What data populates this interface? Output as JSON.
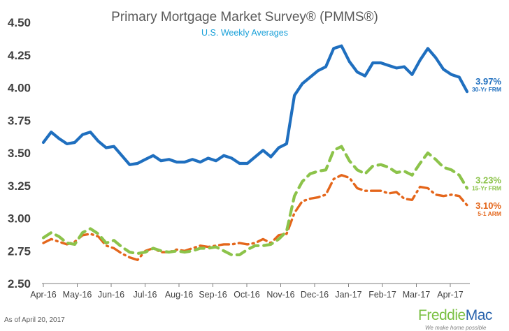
{
  "header": {
    "title": "Primary Mortgage Market Survey® (PMMS®)",
    "subtitle": "U.S. Weekly Averages"
  },
  "footnote": "As of April 20, 2017",
  "logo": {
    "word_part1": "Freddie",
    "word_part2": "Mac",
    "tagline": "We make home possible"
  },
  "colors": {
    "frm30": "#1f6fbf",
    "frm15": "#8cc34a",
    "arm51": "#e4661b",
    "axis_text": "#404040"
  },
  "chart_data": {
    "type": "line",
    "title": "Primary Mortgage Market Survey® (PMMS®)",
    "subtitle": "U.S. Weekly Averages",
    "xlabel": "",
    "ylabel": "",
    "x_tick_labels": [
      "Apr-16",
      "May-16",
      "Jun-16",
      "Jul-16",
      "Aug-16",
      "Sep-16",
      "Oct-16",
      "Nov-16",
      "Dec-16",
      "Jan-17",
      "Feb-17",
      "Mar-17",
      "Apr-17"
    ],
    "y_ticks": [
      2.5,
      2.75,
      3.0,
      3.25,
      3.5,
      3.75,
      4.0,
      4.25,
      4.5
    ],
    "y_tick_labels": [
      "2.50",
      "2.75",
      "3.00",
      "3.25",
      "3.50",
      "3.75",
      "4.00",
      "4.25",
      "4.50"
    ],
    "ylim": [
      2.5,
      4.5
    ],
    "grid": false,
    "legend": "end-of-line labels",
    "x_weeks": [
      "2016-04-07",
      "2016-04-14",
      "2016-04-21",
      "2016-04-28",
      "2016-05-05",
      "2016-05-12",
      "2016-05-19",
      "2016-05-26",
      "2016-06-02",
      "2016-06-09",
      "2016-06-16",
      "2016-06-23",
      "2016-06-30",
      "2016-07-07",
      "2016-07-14",
      "2016-07-21",
      "2016-07-28",
      "2016-08-04",
      "2016-08-11",
      "2016-08-18",
      "2016-08-25",
      "2016-09-01",
      "2016-09-08",
      "2016-09-15",
      "2016-09-22",
      "2016-09-29",
      "2016-10-06",
      "2016-10-13",
      "2016-10-20",
      "2016-10-27",
      "2016-11-03",
      "2016-11-10",
      "2016-11-17",
      "2016-11-23",
      "2016-12-01",
      "2016-12-08",
      "2016-12-15",
      "2016-12-22",
      "2016-12-29",
      "2017-01-05",
      "2017-01-12",
      "2017-01-19",
      "2017-01-26",
      "2017-02-02",
      "2017-02-09",
      "2017-02-16",
      "2017-02-23",
      "2017-03-02",
      "2017-03-09",
      "2017-03-16",
      "2017-03-23",
      "2017-03-30",
      "2017-04-06",
      "2017-04-13",
      "2017-04-20"
    ],
    "series": [
      {
        "name": "30-Yr FRM",
        "label_value": "3.97%",
        "label_name": "30-Yr FRM",
        "style": "solid",
        "values": [
          3.58,
          3.66,
          3.61,
          3.57,
          3.58,
          3.64,
          3.66,
          3.59,
          3.54,
          3.55,
          3.48,
          3.41,
          3.42,
          3.45,
          3.48,
          3.44,
          3.45,
          3.43,
          3.43,
          3.45,
          3.43,
          3.46,
          3.44,
          3.48,
          3.46,
          3.42,
          3.42,
          3.47,
          3.52,
          3.47,
          3.54,
          3.57,
          3.94,
          4.03,
          4.08,
          4.13,
          4.16,
          4.3,
          4.32,
          4.2,
          4.12,
          4.09,
          4.19,
          4.19,
          4.17,
          4.15,
          4.16,
          4.1,
          4.21,
          4.3,
          4.23,
          4.14,
          4.1,
          4.08,
          3.97
        ]
      },
      {
        "name": "15-Yr FRM",
        "label_value": "3.23%",
        "label_name": "15-Yr FRM",
        "style": "dashed",
        "values": [
          2.85,
          2.89,
          2.86,
          2.81,
          2.8,
          2.89,
          2.92,
          2.88,
          2.81,
          2.83,
          2.78,
          2.74,
          2.73,
          2.74,
          2.77,
          2.75,
          2.74,
          2.75,
          2.74,
          2.75,
          2.77,
          2.77,
          2.78,
          2.75,
          2.72,
          2.72,
          2.76,
          2.79,
          2.79,
          2.8,
          2.84,
          2.9,
          3.17,
          3.28,
          3.34,
          3.36,
          3.37,
          3.52,
          3.55,
          3.44,
          3.37,
          3.34,
          3.4,
          3.41,
          3.39,
          3.35,
          3.36,
          3.33,
          3.42,
          3.5,
          3.45,
          3.39,
          3.37,
          3.33,
          3.23
        ]
      },
      {
        "name": "5-1 ARM",
        "label_value": "3.10%",
        "label_name": "5-1 ARM",
        "style": "dashdot",
        "values": [
          2.81,
          2.84,
          2.82,
          2.8,
          2.82,
          2.87,
          2.88,
          2.86,
          2.79,
          2.77,
          2.73,
          2.7,
          2.68,
          2.75,
          2.77,
          2.74,
          2.74,
          2.76,
          2.75,
          2.77,
          2.79,
          2.78,
          2.79,
          2.8,
          2.8,
          2.81,
          2.8,
          2.81,
          2.84,
          2.81,
          2.87,
          2.88,
          3.04,
          3.13,
          3.15,
          3.16,
          3.18,
          3.3,
          3.33,
          3.31,
          3.23,
          3.21,
          3.21,
          3.21,
          3.19,
          3.2,
          3.15,
          3.14,
          3.24,
          3.23,
          3.18,
          3.17,
          3.18,
          3.17,
          3.1
        ]
      }
    ]
  }
}
